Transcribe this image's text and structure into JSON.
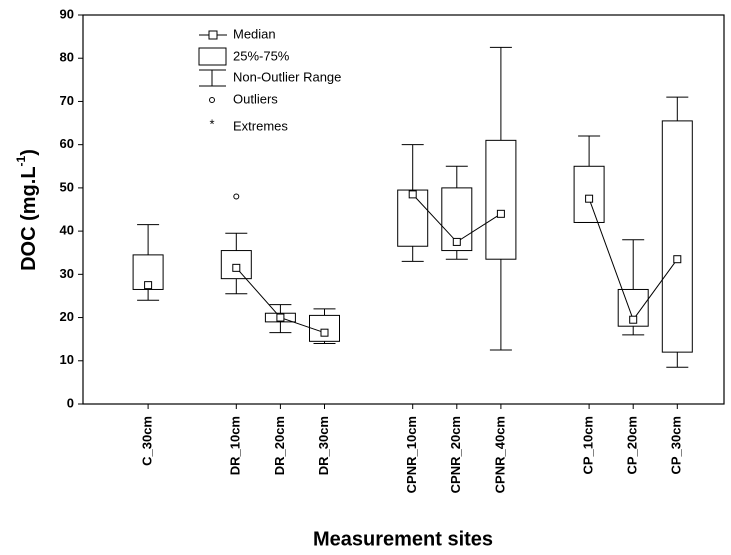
{
  "chart_data": {
    "type": "box",
    "x_label": "Measurement sites",
    "y_label": [
      "DOC  (mg.L",
      "-1",
      ")"
    ],
    "categories": [
      null,
      "C_30cm",
      null,
      "DR_10cm",
      "DR_20cm",
      "DR_30cm",
      null,
      "CPNR_10cm",
      "CPNR_20cm",
      "CPNR_40cm",
      null,
      "CP_10cm",
      "CP_20cm",
      "CP_30cm"
    ],
    "min": [
      null,
      24,
      null,
      25.5,
      16.5,
      14,
      null,
      33,
      33.5,
      12.5,
      null,
      42,
      16,
      8.5
    ],
    "q1": [
      null,
      26.5,
      null,
      29,
      19,
      14.5,
      null,
      36.5,
      35.5,
      33.5,
      null,
      42,
      18,
      12
    ],
    "median": [
      null,
      27.5,
      null,
      31.5,
      20,
      16.5,
      null,
      48.5,
      37.5,
      44,
      null,
      47.5,
      19.5,
      33.5
    ],
    "q3": [
      null,
      34.5,
      null,
      35.5,
      21,
      20.5,
      null,
      49.5,
      50,
      61,
      null,
      55,
      26.5,
      65.5
    ],
    "max": [
      null,
      41.5,
      null,
      39.5,
      23,
      22,
      null,
      60,
      55,
      82.5,
      null,
      62,
      38,
      71
    ],
    "outliers": [
      null,
      null,
      null,
      48,
      null,
      null,
      null,
      null,
      null,
      null,
      null,
      null,
      null,
      null
    ],
    "legend": [
      "Median",
      "25%-75%",
      "Non-Outlier Range",
      "Outliers",
      "Extremes"
    ],
    "ylim": [
      0,
      90
    ],
    "yticks": [
      0,
      10,
      20,
      30,
      40,
      50,
      60,
      70,
      80,
      90
    ],
    "color": "#000000"
  }
}
